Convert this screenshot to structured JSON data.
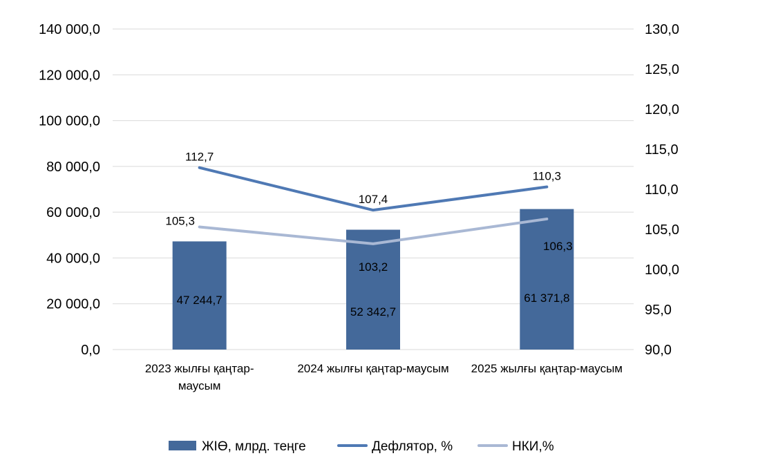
{
  "chart_data": {
    "type": "bar",
    "categories": [
      [
        "2023 жылғы қаңтар-",
        "маусым"
      ],
      [
        "2024 жылғы қаңтар-маусым"
      ],
      [
        "2025 жылғы қаңтар-маусым"
      ]
    ],
    "y_left": {
      "min": 0,
      "max": 140000,
      "step": 20000,
      "tick_labels": [
        "0,0",
        "20 000,0",
        "40 000,0",
        "60 000,0",
        "80 000,0",
        "100 000,0",
        "120 000,0",
        "140 000,0"
      ]
    },
    "y_right": {
      "min": 90,
      "max": 130,
      "step": 5,
      "tick_labels": [
        "90,0",
        "95,0",
        "100,0",
        "105,0",
        "110,0",
        "115,0",
        "120,0",
        "125,0",
        "130,0"
      ]
    },
    "grid": true,
    "legend_position": "bottom",
    "series": [
      {
        "name": "ЖІӨ, млрд. теңге",
        "type": "bar",
        "axis": "left",
        "color": "#44699a",
        "values": [
          47244.7,
          52342.7,
          61371.8
        ],
        "labels": [
          "47 244,7",
          "52 342,7",
          "61 371,8"
        ]
      },
      {
        "name": "Дефлятор, %",
        "type": "line",
        "axis": "right",
        "color": "#4f79b4",
        "values": [
          112.7,
          107.4,
          110.3
        ],
        "labels": [
          "112,7",
          "107,4",
          "110,3"
        ]
      },
      {
        "name": "НКИ,%",
        "type": "line",
        "axis": "right",
        "color": "#a9b8d4",
        "values": [
          105.3,
          103.2,
          106.3
        ],
        "labels": [
          "105,3",
          "103,2",
          "106,3"
        ]
      }
    ]
  }
}
